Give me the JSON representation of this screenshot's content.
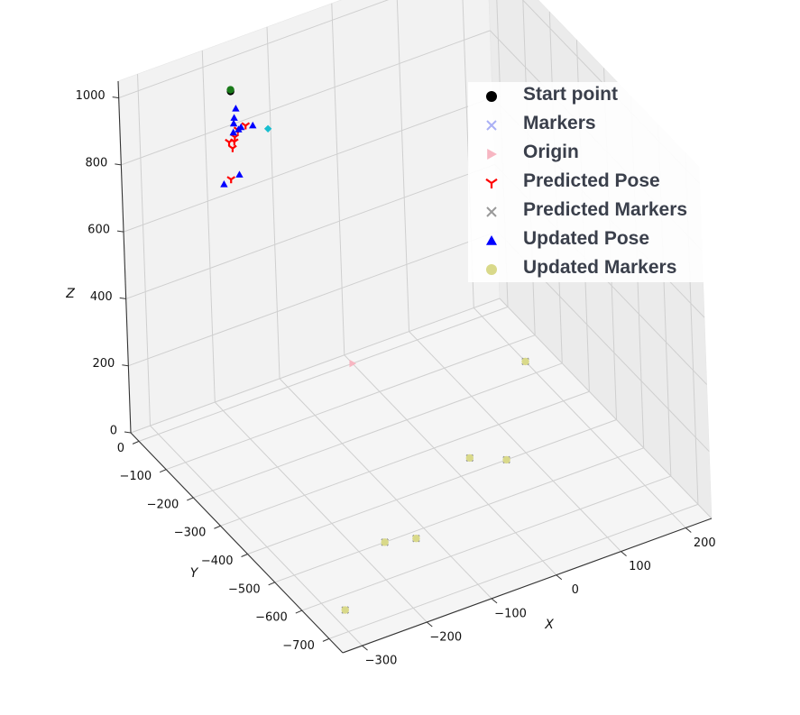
{
  "chart_data": {
    "type": "scatter",
    "title": "",
    "xlabel": "X",
    "ylabel": "Y",
    "zlabel": "Z",
    "xlim": [
      -330,
      240
    ],
    "ylim": [
      -750,
      30
    ],
    "zlim": [
      0,
      1050
    ],
    "x_ticks": [
      "−300",
      "−200",
      "−100",
      "0",
      "100",
      "200"
    ],
    "y_ticks": [
      "0",
      "−100",
      "−200",
      "−300",
      "−400",
      "−500",
      "−600",
      "−700"
    ],
    "z_ticks": [
      "0",
      "200",
      "400",
      "600",
      "800",
      "1000"
    ],
    "grid": true,
    "legend_position": "top-right",
    "series": [
      {
        "name": "Start point",
        "marker": "circle",
        "color": "#000000",
        "points": [
          [
            -195,
            -60,
            1000
          ]
        ]
      },
      {
        "name": "Markers",
        "marker": "x",
        "color": "#aab0f5",
        "points": [
          [
            -280,
            -640,
            0
          ],
          [
            -160,
            -500,
            0
          ],
          [
            -120,
            -520,
            0
          ],
          [
            30,
            -360,
            0
          ],
          [
            70,
            -400,
            0
          ],
          [
            200,
            -160,
            0
          ]
        ]
      },
      {
        "name": "Origin",
        "marker": "triangle-right",
        "color": "#f7b6c2",
        "points": [
          [
            0,
            0,
            0
          ]
        ]
      },
      {
        "name": "Predicted Pose",
        "marker": "tri-down",
        "color": "#ff0000",
        "points": [
          [
            -200,
            -80,
            870
          ],
          [
            -215,
            -100,
            785
          ],
          [
            -190,
            -70,
            890
          ],
          [
            -210,
            -85,
            880
          ],
          [
            -195,
            -60,
            830
          ],
          [
            -180,
            -75,
            900
          ],
          [
            -205,
            -95,
            900
          ]
        ]
      },
      {
        "name": "Predicted Markers",
        "marker": "x",
        "color": "#888888",
        "points": [
          [
            -280,
            -640,
            0
          ],
          [
            -160,
            -500,
            0
          ],
          [
            -120,
            -520,
            0
          ],
          [
            30,
            -360,
            0
          ],
          [
            70,
            -400,
            0
          ],
          [
            200,
            -160,
            0
          ]
        ]
      },
      {
        "name": "Updated Pose",
        "marker": "triangle-up",
        "color": "#0000ff",
        "points": [
          [
            -230,
            -110,
            790
          ],
          [
            -205,
            -90,
            910
          ],
          [
            -195,
            -70,
            930
          ],
          [
            -190,
            -65,
            950
          ],
          [
            -200,
            -80,
            925
          ],
          [
            -185,
            -70,
            895
          ],
          [
            -200,
            -95,
            785
          ],
          [
            -185,
            -60,
            880
          ],
          [
            -175,
            -90,
            910
          ]
        ]
      },
      {
        "name": "Updated Markers",
        "marker": "circle",
        "color": "#d9d98a",
        "points": [
          [
            -280,
            -640,
            0
          ],
          [
            -160,
            -500,
            0
          ],
          [
            -120,
            -520,
            0
          ],
          [
            30,
            -360,
            0
          ],
          [
            70,
            -400,
            0
          ],
          [
            200,
            -160,
            0
          ]
        ]
      },
      {
        "marker": "circle",
        "color": "#1a7a1a",
        "points": [
          [
            -195,
            -60,
            1005
          ]
        ]
      },
      {
        "marker": "diamond",
        "color": "#17becf",
        "points": [
          [
            -140,
            -60,
            850
          ]
        ]
      }
    ]
  },
  "legend": {
    "items": [
      {
        "label": "Start point",
        "marker": "circle",
        "color": "#000000"
      },
      {
        "label": "Markers",
        "marker": "x",
        "color": "#aab0f5"
      },
      {
        "label": "Origin",
        "marker": "triangle-right",
        "color": "#f7b6c2"
      },
      {
        "label": "Predicted Pose",
        "marker": "tri-down",
        "color": "#ff0000"
      },
      {
        "label": "Predicted Markers",
        "marker": "x",
        "color": "#999999"
      },
      {
        "label": "Updated Pose",
        "marker": "triangle-up",
        "color": "#0000ff"
      },
      {
        "label": "Updated Markers",
        "marker": "circle",
        "color": "#d9d98a"
      }
    ]
  }
}
